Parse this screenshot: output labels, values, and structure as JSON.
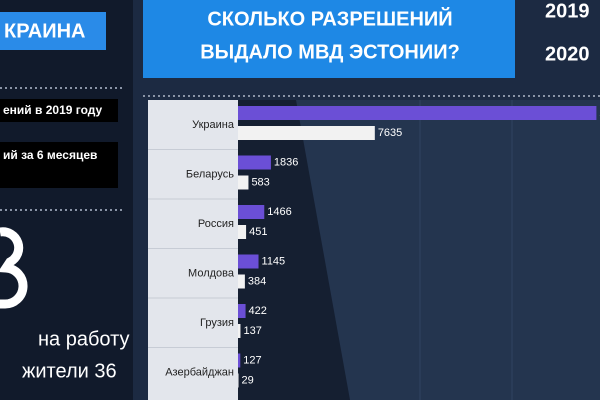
{
  "sidebar": {
    "heading": "КРАИНА",
    "notes": [
      "ений в 2019 году",
      "ий за 6 месяцев"
    ],
    "text_lines": [
      "на работу",
      "жители 36"
    ]
  },
  "chart_data": {
    "type": "bar",
    "orientation": "horizontal",
    "title": [
      "СКОЛЬКО РАЗРЕШЕНИЙ",
      "ВЫДАЛО МВД ЭСТОНИИ?"
    ],
    "categories": [
      "Украина",
      "Беларусь",
      "Россия",
      "Молдова",
      "Грузия",
      "Азербайджан"
    ],
    "series": [
      {
        "name": "2019",
        "color": "#6b4fd6",
        "values": [
          20000,
          1836,
          1466,
          1145,
          422,
          127
        ]
      },
      {
        "name": "2020",
        "color": "#f2f2f2",
        "values": [
          7635,
          583,
          451,
          384,
          137,
          29
        ]
      }
    ],
    "xlim": [
      0,
      25000
    ]
  }
}
